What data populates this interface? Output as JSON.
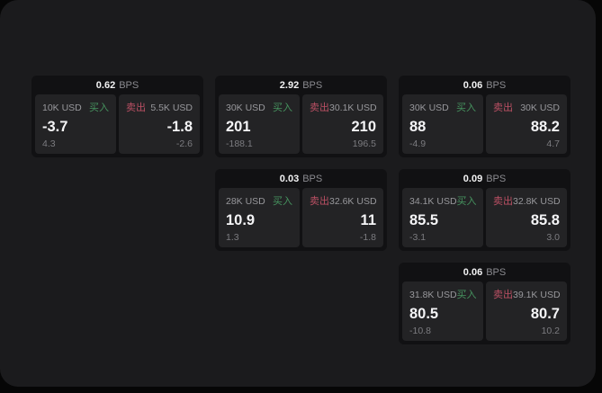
{
  "labels": {
    "buy": "买入",
    "sell": "卖出",
    "bps_unit": "BPS"
  },
  "colors": {
    "buy_green": "#46935f",
    "sell_red": "#bb5064",
    "panel_bg": "#1b1b1d",
    "card_bg": "#111113",
    "tile_bg": "#232325"
  },
  "cards": [
    {
      "bps": "0.62",
      "buy": {
        "size": "10K USD",
        "value": "-3.7",
        "sub": "4.3"
      },
      "sell": {
        "size": "5.5K USD",
        "value": "-1.8",
        "sub": "-2.6"
      }
    },
    {
      "bps": "2.92",
      "buy": {
        "size": "30K USD",
        "value": "201",
        "sub": "-188.1"
      },
      "sell": {
        "size": "30.1K USD",
        "value": "210",
        "sub": "196.5"
      }
    },
    {
      "bps": "0.06",
      "buy": {
        "size": "30K USD",
        "value": "88",
        "sub": "-4.9"
      },
      "sell": {
        "size": "30K USD",
        "value": "88.2",
        "sub": "4.7"
      }
    },
    {
      "bps": "0.03",
      "buy": {
        "size": "28K USD",
        "value": "10.9",
        "sub": "1.3"
      },
      "sell": {
        "size": "32.6K USD",
        "value": "11",
        "sub": "-1.8"
      }
    },
    {
      "bps": "0.09",
      "buy": {
        "size": "34.1K USD",
        "value": "85.5",
        "sub": "-3.1"
      },
      "sell": {
        "size": "32.8K USD",
        "value": "85.8",
        "sub": "3.0"
      }
    },
    {
      "bps": "0.06",
      "buy": {
        "size": "31.8K USD",
        "value": "80.5",
        "sub": "-10.8"
      },
      "sell": {
        "size": "39.1K USD",
        "value": "80.7",
        "sub": "10.2"
      }
    }
  ]
}
